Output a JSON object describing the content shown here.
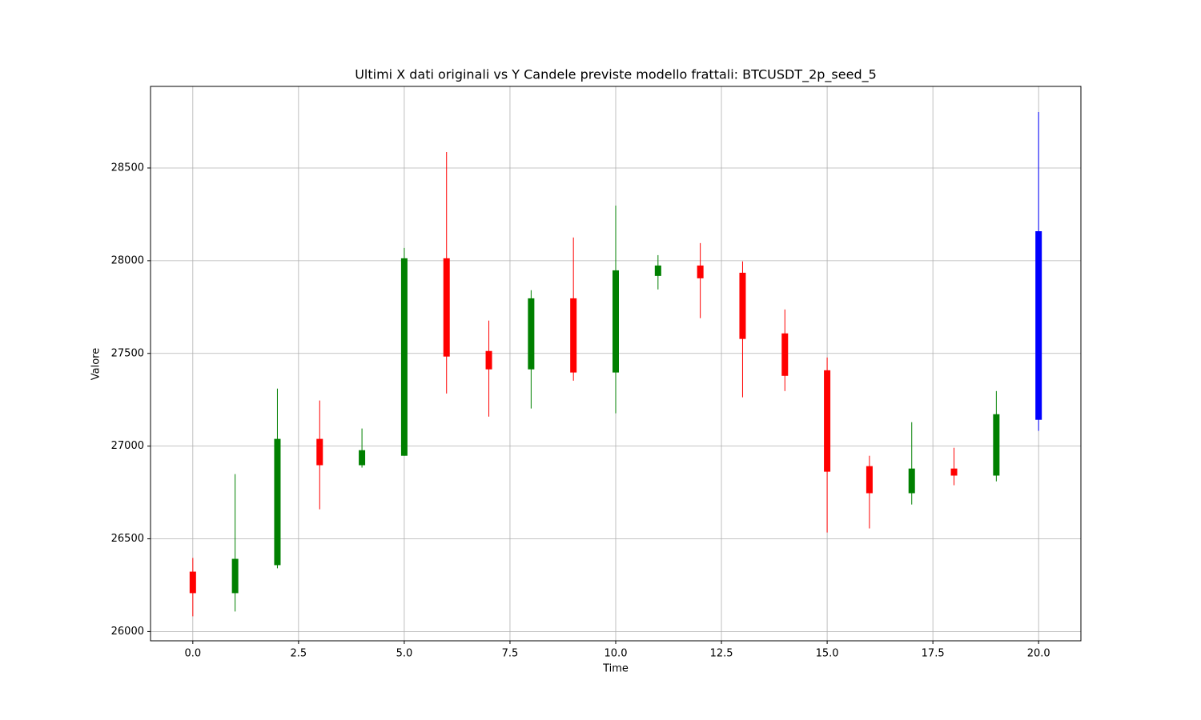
{
  "chart_data": {
    "type": "candlestick",
    "title": "Ultimi X dati originali vs Y Candele previste modello frattali: BTCUSDT_2p_seed_5",
    "x_label": "Time",
    "y_label": "Valore",
    "x": [
      0,
      1,
      2,
      3,
      4,
      5,
      6,
      7,
      8,
      9,
      10,
      11,
      12,
      13,
      14,
      15,
      16,
      17,
      18,
      19,
      20
    ],
    "open": [
      26323,
      26207,
      26358,
      27039,
      26897,
      26948,
      28013,
      27513,
      27414,
      27797,
      27397,
      27918,
      27974,
      27935,
      27608,
      27409,
      26892,
      26746,
      26879,
      26841,
      27142
    ],
    "high": [
      26397,
      26849,
      27310,
      27246,
      27095,
      28069,
      28586,
      27677,
      27841,
      28125,
      28297,
      28030,
      28095,
      27996,
      27737,
      27478,
      26948,
      27129,
      26991,
      27297,
      28802
    ],
    "low": [
      26082,
      26108,
      26341,
      26659,
      26884,
      26948,
      27284,
      27159,
      27203,
      27353,
      27177,
      27845,
      27690,
      27263,
      27297,
      26534,
      26556,
      26685,
      26789,
      26810,
      27082
    ],
    "close": [
      26207,
      26392,
      27039,
      26897,
      26978,
      28013,
      27483,
      27414,
      27797,
      27397,
      27948,
      27974,
      27905,
      27578,
      27379,
      26862,
      26746,
      26879,
      26841,
      27172,
      28159
    ],
    "colors": [
      "red",
      "green",
      "green",
      "red",
      "green",
      "green",
      "red",
      "red",
      "green",
      "red",
      "green",
      "green",
      "red",
      "red",
      "red",
      "red",
      "red",
      "green",
      "red",
      "green",
      "blue"
    ],
    "xlim": [
      -1,
      21
    ],
    "ylim": [
      25950,
      28940
    ],
    "xticks": [
      {
        "value": 0,
        "label": "0.0"
      },
      2.5,
      {
        "value": 5,
        "label": "5.0"
      },
      7.5,
      {
        "value": 10,
        "label": "10.0"
      },
      12.5,
      {
        "value": 15,
        "label": "15.0"
      },
      17.5,
      {
        "value": 20,
        "label": "20.0"
      }
    ],
    "yticks": [
      26000,
      26500,
      27000,
      27500,
      28000,
      28500
    ],
    "grid": true
  }
}
